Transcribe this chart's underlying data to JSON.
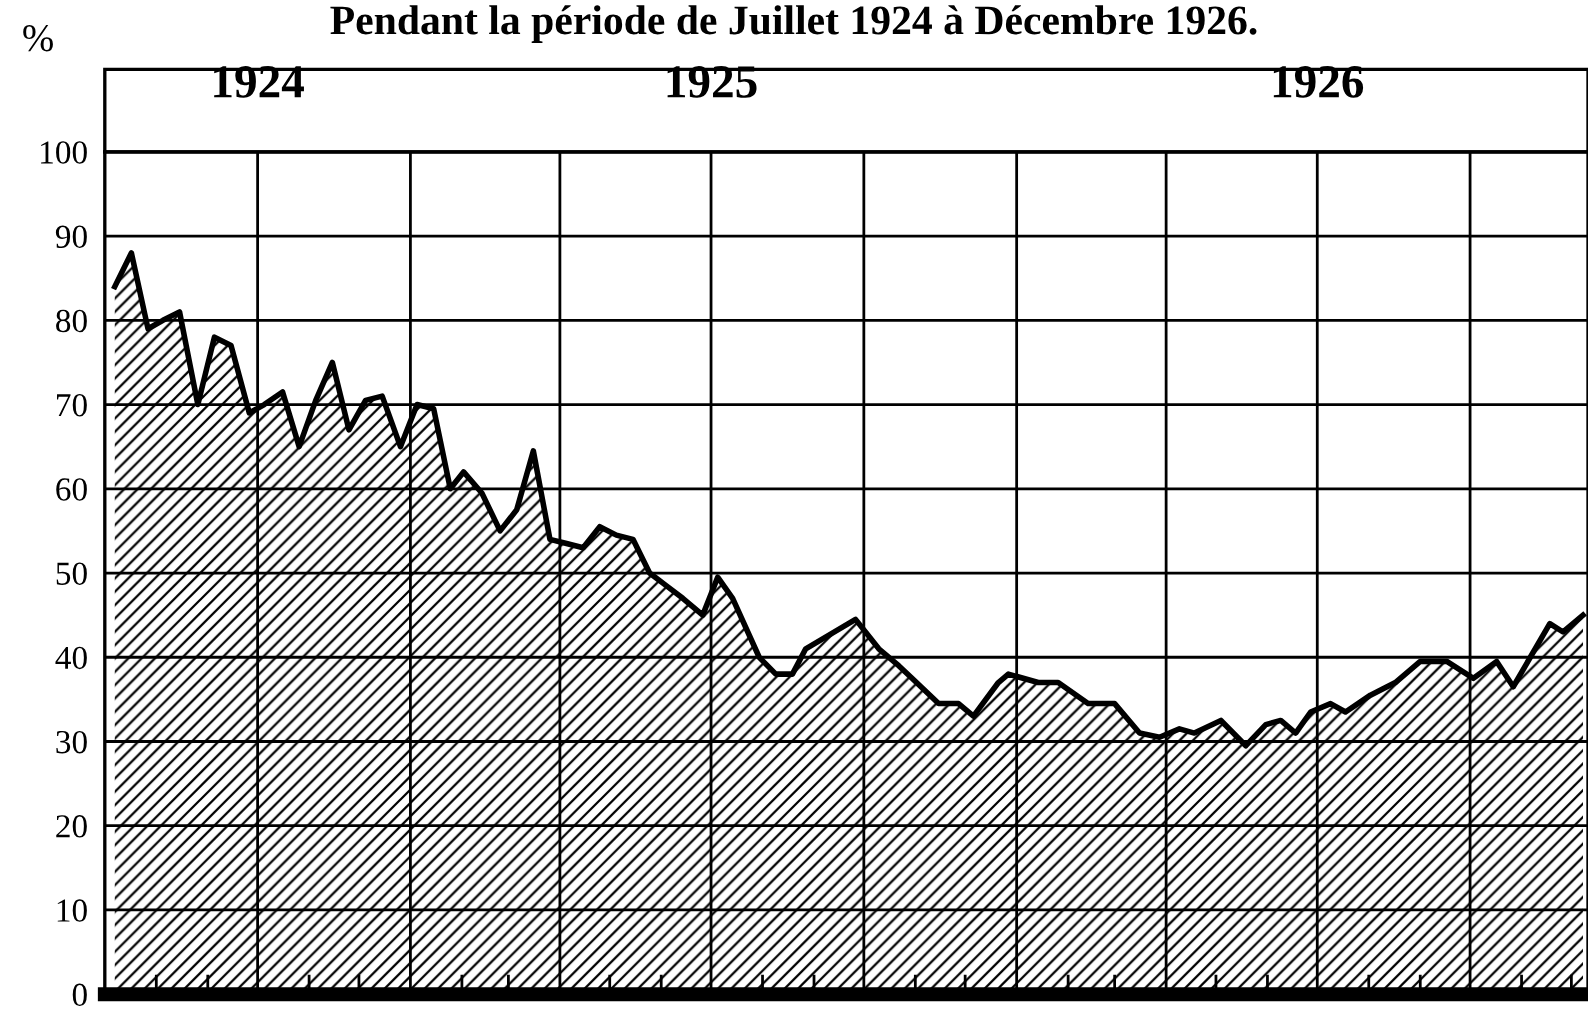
{
  "chart_data": {
    "type": "area",
    "title": "Pendant la période de Juillet 1924 à Décembre 1926.",
    "ylabel": "%",
    "x": [
      "1924-07-07",
      "1924-07-17",
      "1924-07-27",
      "1924-08-05",
      "1924-08-15",
      "1924-08-26",
      "1924-09-05",
      "1924-09-15",
      "1924-09-26",
      "1924-10-05",
      "1924-10-16",
      "1924-10-26",
      "1924-11-05",
      "1924-11-15",
      "1924-11-25",
      "1924-12-05",
      "1924-12-15",
      "1924-12-26",
      "1925-01-05",
      "1925-01-15",
      "1925-01-25",
      "1925-02-02",
      "1925-02-13",
      "1925-02-24",
      "1925-03-06",
      "1925-03-16",
      "1925-03-26",
      "1925-04-05",
      "1925-04-15",
      "1925-04-25",
      "1925-05-05",
      "1925-05-15",
      "1925-05-25",
      "1925-06-04",
      "1925-06-14",
      "1925-06-26",
      "1925-07-05",
      "1925-07-14",
      "1925-07-30",
      "1925-08-09",
      "1925-08-19",
      "1925-08-27",
      "1925-09-26",
      "1925-10-10",
      "1925-10-22",
      "1925-10-30",
      "1925-11-15",
      "1925-11-27",
      "1925-12-06",
      "1925-12-21",
      "1925-12-27",
      "1926-01-14",
      "1926-01-26",
      "1926-02-13",
      "1926-03-01",
      "1926-03-16",
      "1926-03-28",
      "1926-04-09",
      "1926-04-18",
      "1926-05-04",
      "1926-05-19",
      "1926-05-31",
      "1926-06-09",
      "1926-06-18",
      "1926-06-27",
      "1926-07-09",
      "1926-07-18",
      "1926-08-02",
      "1926-08-17",
      "1926-09-01",
      "1926-09-17",
      "1926-10-03",
      "1926-10-17",
      "1926-10-27",
      "1926-11-18",
      "1926-11-26",
      "1926-12-08"
    ],
    "series": [
      {
        "color": "#000000",
        "values": [
          84,
          88,
          79,
          80,
          81,
          70,
          78,
          77,
          69,
          70,
          71.5,
          65,
          70.5,
          75,
          67,
          70.5,
          71,
          65,
          70,
          69.5,
          60,
          62,
          59.5,
          55,
          57.5,
          64.5,
          54,
          53.5,
          53,
          55.5,
          54.5,
          54,
          50,
          48.5,
          47,
          45,
          49.5,
          47,
          40,
          38,
          38,
          41,
          44.5,
          41,
          39,
          37.5,
          34.5,
          34.5,
          33,
          37,
          38,
          37,
          37,
          34.5,
          34.5,
          31,
          30.5,
          31.5,
          31,
          32.5,
          29.5,
          32,
          32.5,
          31,
          33.5,
          34.5,
          33.5,
          35.5,
          37,
          39.5,
          39.5,
          37.5,
          39.5,
          36.5,
          44,
          43,
          45
        ]
      }
    ],
    "xlim": [
      "1924-07-01",
      "1926-12-11"
    ],
    "xticks": [
      {
        "value": "1924-10-01",
        "label": "1924"
      },
      {
        "value": "1925-01-01",
        "label": null
      },
      {
        "value": "1925-04-01",
        "label": null
      },
      {
        "value": "1925-07-01",
        "label": "1925"
      },
      {
        "value": "1925-10-01",
        "label": null
      },
      {
        "value": "1926-01-01",
        "label": null
      },
      {
        "value": "1926-04-01",
        "label": null
      },
      {
        "value": "1926-07-01",
        "label": "1926"
      },
      {
        "value": "1926-10-01",
        "label": null
      }
    ],
    "ylim": [
      0,
      100
    ],
    "yticks": [
      0,
      10,
      20,
      30,
      40,
      50,
      60,
      70,
      80,
      90,
      100
    ],
    "grid": true,
    "legend": false
  }
}
